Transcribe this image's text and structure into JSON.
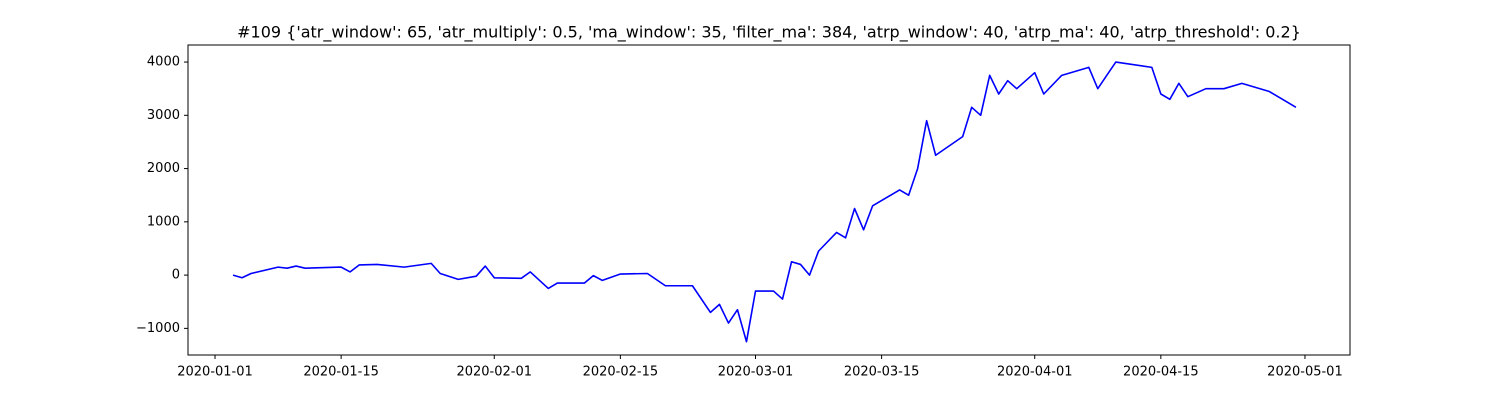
{
  "chart_data": {
    "type": "line",
    "title": "#109 {'atr_window': 65, 'atr_multiply': 0.5, 'ma_window': 35, 'filter_ma': 384, 'atrp_window': 40, 'atrp_ma': 40, 'atrp_threshold': 0.2}",
    "x": [
      "2020-01-03",
      "2020-01-04",
      "2020-01-05",
      "2020-01-08",
      "2020-01-09",
      "2020-01-10",
      "2020-01-11",
      "2020-01-15",
      "2020-01-16",
      "2020-01-17",
      "2020-01-19",
      "2020-01-22",
      "2020-01-25",
      "2020-01-26",
      "2020-01-28",
      "2020-01-30",
      "2020-01-31",
      "2020-02-01",
      "2020-02-04",
      "2020-02-05",
      "2020-02-07",
      "2020-02-08",
      "2020-02-11",
      "2020-02-12",
      "2020-02-13",
      "2020-02-15",
      "2020-02-18",
      "2020-02-20",
      "2020-02-23",
      "2020-02-25",
      "2020-02-26",
      "2020-02-27",
      "2020-02-28",
      "2020-02-29",
      "2020-03-01",
      "2020-03-03",
      "2020-03-04",
      "2020-03-05",
      "2020-03-06",
      "2020-03-07",
      "2020-03-08",
      "2020-03-10",
      "2020-03-11",
      "2020-03-12",
      "2020-03-13",
      "2020-03-14",
      "2020-03-17",
      "2020-03-18",
      "2020-03-19",
      "2020-03-20",
      "2020-03-21",
      "2020-03-24",
      "2020-03-25",
      "2020-03-26",
      "2020-03-27",
      "2020-03-28",
      "2020-03-29",
      "2020-03-30",
      "2020-04-01",
      "2020-04-02",
      "2020-04-04",
      "2020-04-07",
      "2020-04-08",
      "2020-04-09",
      "2020-04-10",
      "2020-04-14",
      "2020-04-15",
      "2020-04-16",
      "2020-04-17",
      "2020-04-18",
      "2020-04-20",
      "2020-04-22",
      "2020-04-24",
      "2020-04-27",
      "2020-04-29",
      "2020-04-30"
    ],
    "series": [
      {
        "color": "#0000ff",
        "values": [
          0,
          -50,
          30,
          150,
          130,
          170,
          130,
          150,
          60,
          190,
          200,
          150,
          220,
          30,
          -80,
          -20,
          170,
          -50,
          -60,
          60,
          -250,
          -150,
          -150,
          -10,
          -100,
          20,
          30,
          -200,
          -200,
          -700,
          -550,
          -900,
          -650,
          -1250,
          -300,
          -300,
          -450,
          250,
          200,
          0,
          450,
          800,
          700,
          1250,
          850,
          1300,
          1600,
          1500,
          2000,
          2900,
          2250,
          2600,
          3150,
          3000,
          3750,
          3400,
          3650,
          3500,
          3800,
          3400,
          3750,
          3900,
          3500,
          3750,
          4000,
          3900,
          3400,
          3300,
          3600,
          3350,
          3500,
          3500,
          3600,
          3450,
          3250,
          3150
        ]
      }
    ],
    "xlim": [
      "2019-12-29",
      "2020-05-06"
    ],
    "xticks": [
      "2020-01-01",
      "2020-01-15",
      "2020-02-01",
      "2020-02-15",
      "2020-03-01",
      "2020-03-15",
      "2020-04-01",
      "2020-04-15",
      "2020-05-01"
    ],
    "ylim": [
      -1500,
      4320
    ],
    "yticks": [
      {
        "value": -1000,
        "label": "−1000"
      },
      0,
      1000,
      2000,
      3000,
      4000
    ]
  }
}
